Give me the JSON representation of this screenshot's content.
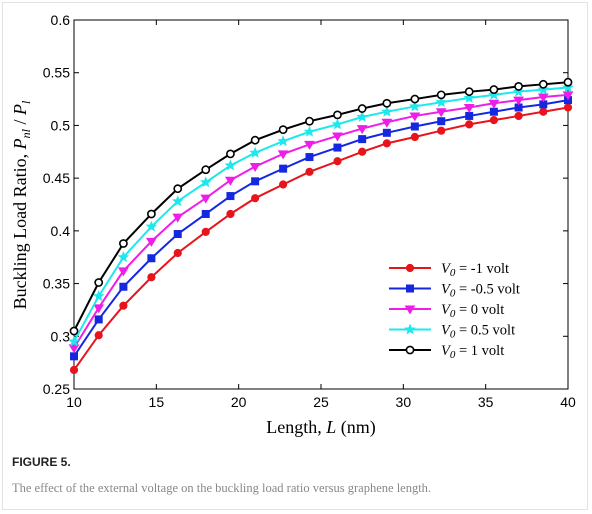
{
  "figure": {
    "label": "FIGURE 5.",
    "caption": "The effect of the external voltage on the buckling load ratio versus graphene length."
  },
  "chart_data": {
    "type": "line",
    "xlabel": {
      "prefix": "Length, ",
      "var": "L",
      "suffix": " (nm)"
    },
    "ylabel": {
      "prefix": "Buckling Load Ratio, ",
      "num_var": "P",
      "num_sub": "nl",
      "sep": " / ",
      "den_var": "P",
      "den_sub": "l"
    },
    "xlim": [
      10,
      40
    ],
    "ylim": [
      0.25,
      0.6
    ],
    "xticks": [
      "10",
      "15",
      "20",
      "25",
      "30",
      "35",
      "40"
    ],
    "yticks": [
      "0.25",
      "0.3",
      "0.35",
      "0.4",
      "0.45",
      "0.5",
      "0.55",
      "0.6"
    ],
    "grid": false,
    "legend_position": "bottom-right",
    "x": [
      10,
      11.5,
      13,
      14.7,
      16.3,
      18,
      19.5,
      21,
      22.7,
      24.3,
      26,
      27.5,
      29,
      30.7,
      32.3,
      34,
      35.5,
      37,
      38.5,
      40
    ],
    "series": [
      {
        "name": "V0 = -1 volt",
        "legend_var": "V",
        "legend_sub": "0",
        "legend_rest": " = -1 volt",
        "color": "#e8141c",
        "marker": "circle-filled",
        "values": [
          0.268,
          0.301,
          0.329,
          0.356,
          0.379,
          0.399,
          0.416,
          0.431,
          0.444,
          0.456,
          0.466,
          0.475,
          0.483,
          0.489,
          0.495,
          0.501,
          0.505,
          0.509,
          0.513,
          0.517
        ]
      },
      {
        "name": "V0 = -0.5 volt",
        "legend_var": "V",
        "legend_sub": "0",
        "legend_rest": " = -0.5 volt",
        "color": "#1428e0",
        "marker": "square-filled",
        "values": [
          0.281,
          0.316,
          0.347,
          0.374,
          0.397,
          0.416,
          0.433,
          0.447,
          0.459,
          0.47,
          0.479,
          0.487,
          0.493,
          0.499,
          0.504,
          0.509,
          0.513,
          0.517,
          0.52,
          0.524
        ]
      },
      {
        "name": "V0 = 0 volt",
        "legend_var": "V",
        "legend_sub": "0",
        "legend_rest": " = 0 volt",
        "color": "#ee1ee8",
        "marker": "triangle-down-filled",
        "values": [
          0.289,
          0.327,
          0.362,
          0.39,
          0.413,
          0.431,
          0.448,
          0.461,
          0.473,
          0.482,
          0.49,
          0.497,
          0.503,
          0.509,
          0.513,
          0.517,
          0.521,
          0.524,
          0.527,
          0.529
        ]
      },
      {
        "name": "V0 = 0.5 volt",
        "legend_var": "V",
        "legend_sub": "0",
        "legend_rest": " = 0.5 volt",
        "color": "#1ee8ec",
        "marker": "star",
        "values": [
          0.295,
          0.338,
          0.375,
          0.404,
          0.428,
          0.446,
          0.462,
          0.474,
          0.485,
          0.494,
          0.501,
          0.508,
          0.513,
          0.518,
          0.522,
          0.526,
          0.529,
          0.532,
          0.534,
          0.536
        ]
      },
      {
        "name": "V0 = 1 volt",
        "legend_var": "V",
        "legend_sub": "0",
        "legend_rest": " = 1 volt",
        "color": "#000000",
        "marker": "circle-open",
        "values": [
          0.305,
          0.351,
          0.388,
          0.416,
          0.44,
          0.458,
          0.473,
          0.486,
          0.496,
          0.504,
          0.51,
          0.516,
          0.521,
          0.525,
          0.529,
          0.532,
          0.534,
          0.537,
          0.539,
          0.541
        ]
      }
    ]
  }
}
